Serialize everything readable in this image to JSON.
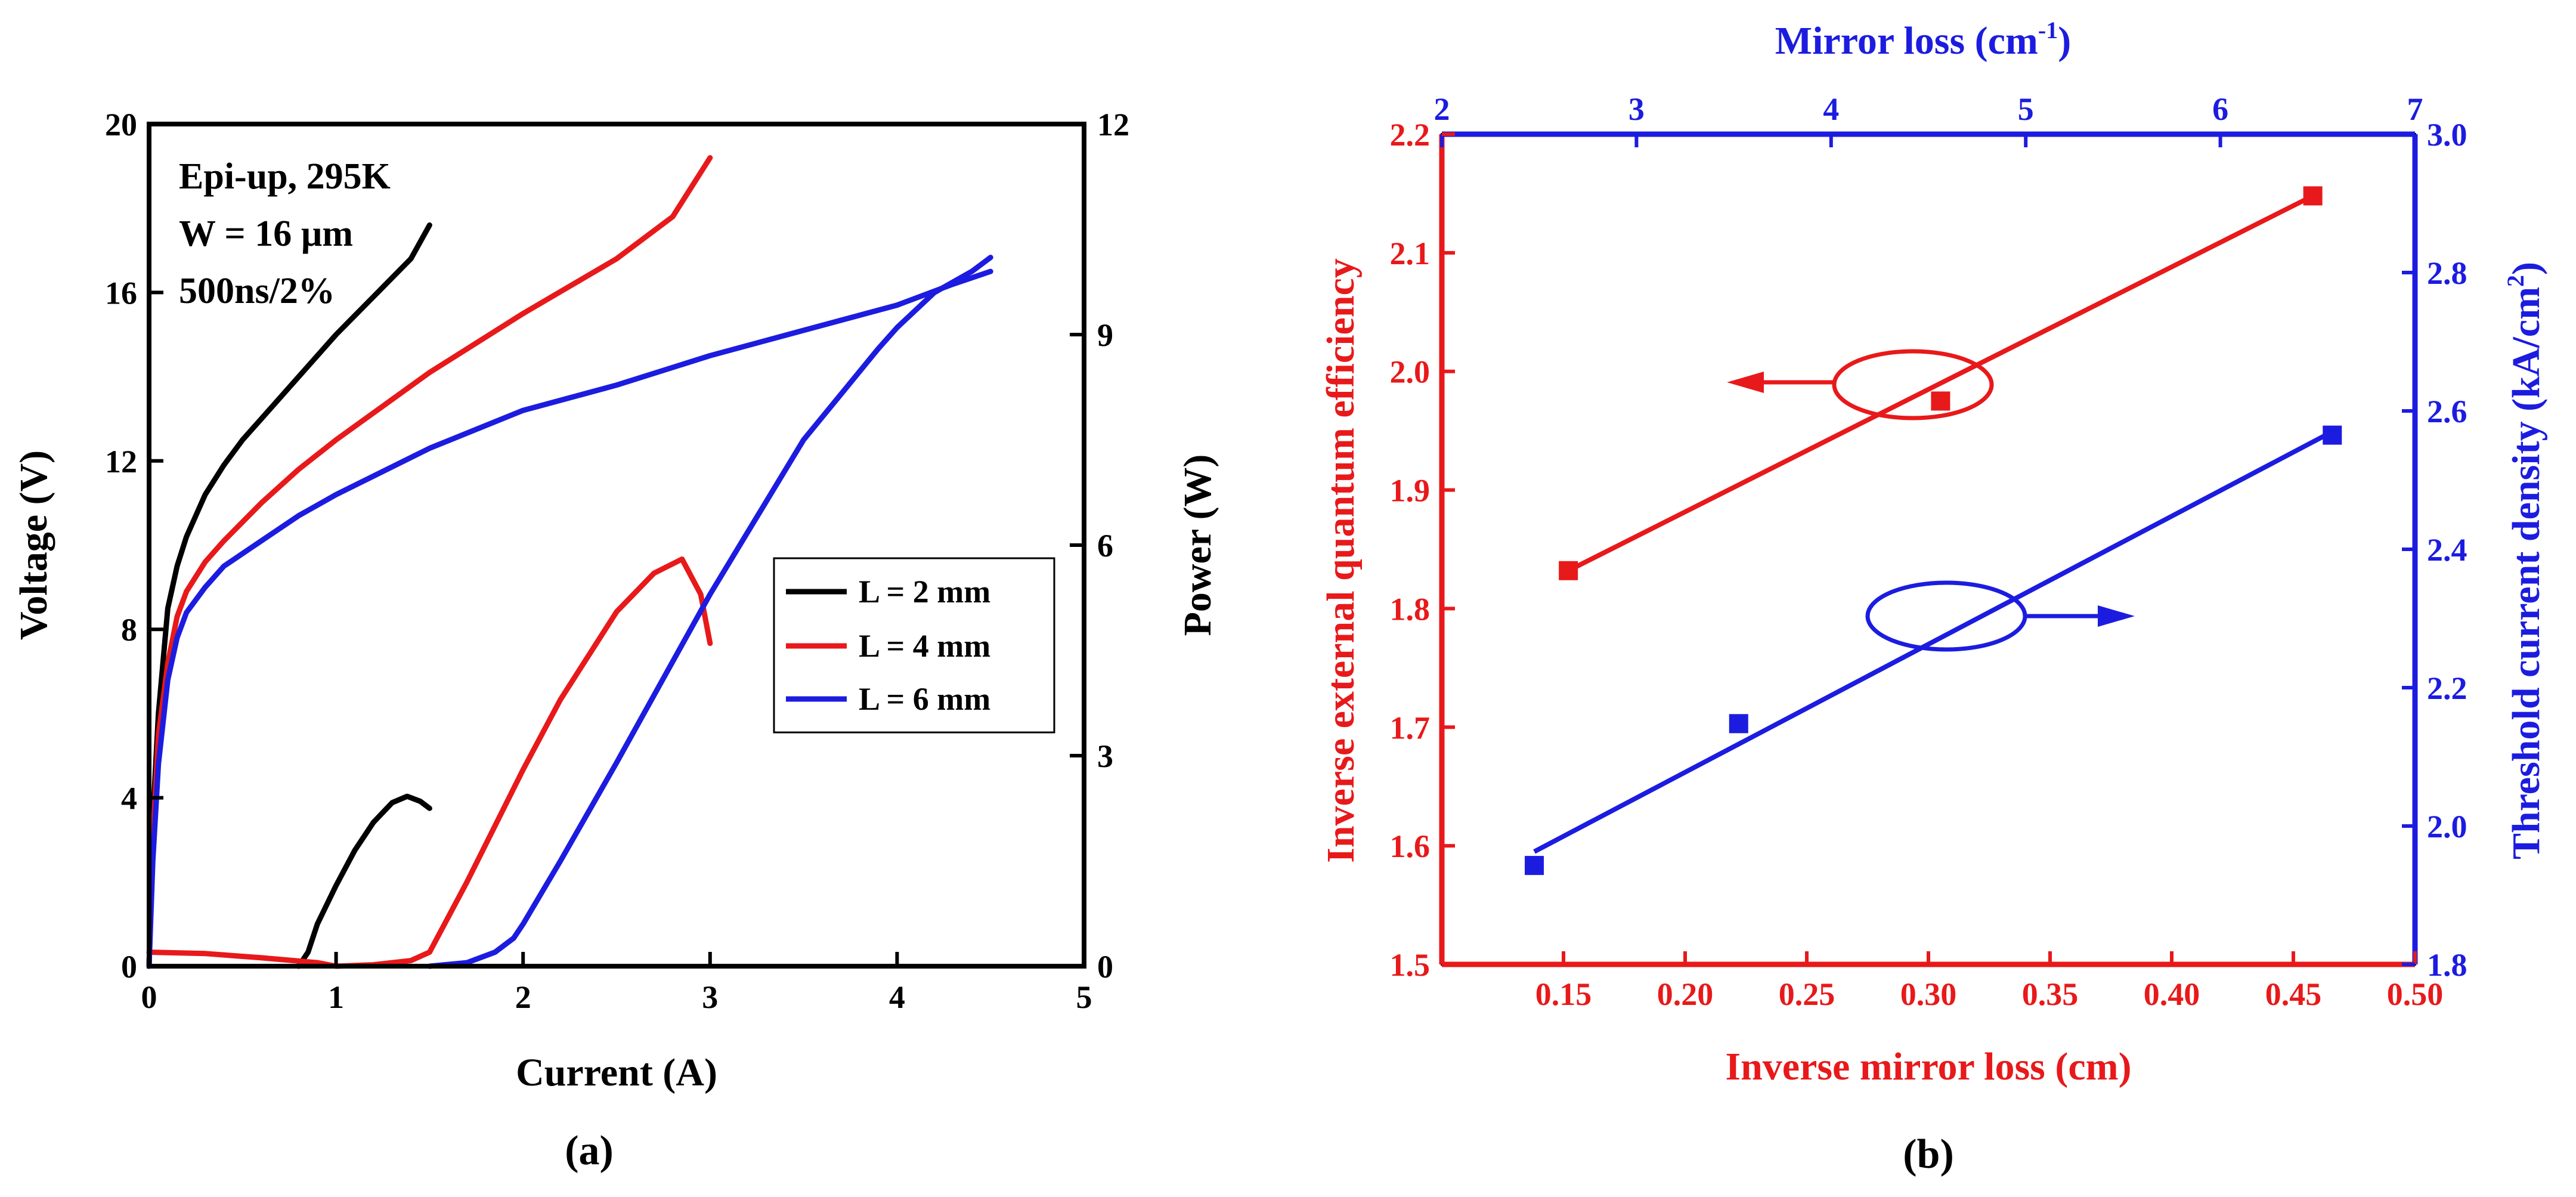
{
  "chart_data": [
    {
      "panel_label": "(a)",
      "type": "line",
      "xlabel": "Current (A)",
      "ylabel_left": "Voltage (V)",
      "ylabel_right": "Power (W)",
      "xlim": [
        0,
        5
      ],
      "ylim_left": [
        0,
        20
      ],
      "ylim_right": [
        0,
        12
      ],
      "xticks": [
        0,
        1,
        2,
        3,
        4,
        5
      ],
      "yticks_left": [
        0,
        4,
        8,
        12,
        16,
        20
      ],
      "yticks_right": [
        0,
        3,
        6,
        9,
        12
      ],
      "annotations": [
        "Epi-up, 295K",
        "W = 16 µm",
        "500ns/2%"
      ],
      "legend_location": "center-right",
      "series": [
        {
          "name": "L = 2 mm",
          "color": "#000000",
          "voltage": {
            "x": [
              0,
              0.02,
              0.05,
              0.1,
              0.15,
              0.2,
              0.3,
              0.4,
              0.5,
              0.6,
              0.8,
              1.0,
              1.2,
              1.4,
              1.5
            ],
            "y": [
              0,
              3.5,
              6.0,
              8.5,
              9.5,
              10.2,
              11.2,
              11.9,
              12.5,
              13.0,
              14.0,
              15.0,
              15.9,
              16.8,
              17.6
            ]
          },
          "power": {
            "x": [
              0.8,
              0.85,
              0.9,
              1.0,
              1.1,
              1.2,
              1.3,
              1.38,
              1.45,
              1.5
            ],
            "y": [
              0,
              0.2,
              0.6,
              1.15,
              1.65,
              2.05,
              2.33,
              2.42,
              2.35,
              2.25
            ]
          }
        },
        {
          "name": "L = 4 mm",
          "color": "#e8191a",
          "voltage": {
            "x": [
              0,
              0.02,
              0.05,
              0.1,
              0.15,
              0.2,
              0.3,
              0.4,
              0.6,
              0.8,
              1.0,
              1.5,
              2.0,
              2.5,
              2.8,
              3.0
            ],
            "y": [
              0,
              3.0,
              5.5,
              7.2,
              8.3,
              8.9,
              9.6,
              10.1,
              11.0,
              11.8,
              12.5,
              14.1,
              15.5,
              16.8,
              17.8,
              19.2
            ]
          },
          "power": {
            "x": [
              0,
              0.3,
              0.6,
              0.9,
              1.0,
              1.2,
              1.4,
              1.5,
              1.7,
              2.0,
              2.2,
              2.5,
              2.7,
              2.85,
              2.95,
              3.0
            ],
            "y": [
              0.2,
              0.18,
              0.12,
              0.05,
              0,
              0.02,
              0.08,
              0.2,
              1.2,
              2.8,
              3.8,
              5.05,
              5.6,
              5.8,
              5.3,
              4.6
            ]
          }
        },
        {
          "name": "L = 6 mm",
          "color": "#1c1ce0",
          "voltage": {
            "x": [
              0,
              0.02,
              0.05,
              0.1,
              0.15,
              0.2,
              0.3,
              0.4,
              0.6,
              0.8,
              1.0,
              1.5,
              2.0,
              2.5,
              3.0,
              3.5,
              4.0,
              4.3,
              4.5
            ],
            "y": [
              0,
              2.5,
              4.8,
              6.8,
              7.8,
              8.4,
              9.0,
              9.5,
              10.1,
              10.7,
              11.2,
              12.3,
              13.2,
              13.8,
              14.5,
              15.1,
              15.7,
              16.2,
              16.5
            ]
          },
          "power": {
            "x": [
              1.5,
              1.7,
              1.85,
              1.95,
              2.0,
              2.2,
              2.5,
              3.0,
              3.5,
              3.9,
              4.0,
              4.2,
              4.4,
              4.5
            ],
            "y": [
              0,
              0.05,
              0.2,
              0.4,
              0.6,
              1.5,
              2.9,
              5.3,
              7.5,
              8.8,
              9.1,
              9.6,
              9.9,
              10.1
            ]
          }
        }
      ]
    },
    {
      "panel_label": "(b)",
      "type": "scatter",
      "xlabel": "Inverse mirror loss (cm)",
      "xlabel_top": "Mirror loss (cm-1)",
      "ylabel_left": "Inverse external quantum efficiency",
      "ylabel_right": "Threshold current density (kA/cm2)",
      "xlim": [
        0.1,
        0.5
      ],
      "xlim_top": [
        2,
        7
      ],
      "ylim_left": [
        1.5,
        2.2
      ],
      "ylim_right": [
        1.8,
        3.0
      ],
      "xticks": [
        "0.15",
        "0.20",
        "0.25",
        "0.30",
        "0.35",
        "0.40",
        "0.45",
        "0.50"
      ],
      "xticks_top": [
        "2",
        "3",
        "4",
        "5",
        "6",
        "7"
      ],
      "yticks_left": [
        "1.5",
        "1.6",
        "1.7",
        "1.8",
        "1.9",
        "2.0",
        "2.1",
        "2.2"
      ],
      "yticks_right": [
        "1.8",
        "2.0",
        "2.2",
        "2.4",
        "2.6",
        "2.8",
        "3.0"
      ],
      "series": [
        {
          "name": "Inverse external quantum efficiency",
          "axis": "left",
          "color": "#e8191a",
          "x": [
            0.152,
            0.305,
            0.458
          ],
          "y": [
            1.832,
            1.975,
            2.148
          ],
          "fit": {
            "x": [
              0.152,
              0.458
            ],
            "y": [
              1.832,
              2.148
            ]
          }
        },
        {
          "name": "Threshold current density",
          "axis": "right",
          "color": "#1c1ce0",
          "x": [
            0.138,
            0.222,
            0.466
          ],
          "y": [
            1.943,
            2.148,
            2.565
          ],
          "fit": {
            "x": [
              0.138,
              0.466
            ],
            "y": [
              1.963,
              2.57
            ]
          }
        }
      ]
    }
  ]
}
